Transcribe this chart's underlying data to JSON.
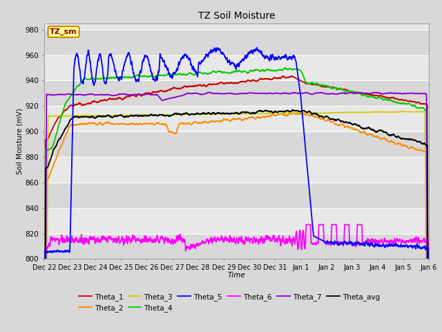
{
  "title": "TZ Soil Moisture",
  "xlabel": "Time",
  "ylabel": "Soil Moisture (mV)",
  "ylim": [
    800,
    985
  ],
  "yticks": [
    800,
    820,
    840,
    860,
    880,
    900,
    920,
    940,
    960,
    980
  ],
  "series_colors": {
    "Theta_1": "#cc0000",
    "Theta_2": "#ff8800",
    "Theta_3": "#cccc00",
    "Theta_4": "#00cc00",
    "Theta_5": "#0000ff",
    "Theta_6": "#ff00ff",
    "Theta_7": "#8800cc",
    "Theta_avg": "#000000"
  },
  "xtick_labels": [
    "Dec 22",
    "Dec 23",
    "Dec 24",
    "Dec 25",
    "Dec 26",
    "Dec 27",
    "Dec 28",
    "Dec 29",
    "Dec 30",
    "Dec 31",
    "Jan 1",
    "Jan 2",
    "Jan 3",
    "Jan 4",
    "Jan 5",
    "Jan 6"
  ],
  "n_points": 2000,
  "background_color": "#e8e8e8",
  "plot_bg_color": "#e8e8e8",
  "grid_color": "#ffffff",
  "legend_box_color": "#ffff99",
  "legend_box_edge": "#cc8800",
  "watermark_text": "TZ_sm",
  "line_width": 1.3,
  "fig_bg": "#d8d8d8"
}
